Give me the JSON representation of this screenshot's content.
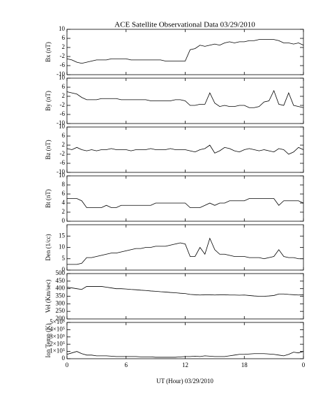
{
  "chart_data": [
    {
      "type": "line",
      "title": "ACE Satellite Observational Data  03/29/2010",
      "ylabel": "Bx (nT)",
      "color": "#000000",
      "x": [
        0,
        0.5,
        1,
        1.5,
        2,
        2.5,
        3,
        3.5,
        4,
        4.5,
        5,
        5.5,
        6,
        6.5,
        7,
        7.5,
        8,
        8.5,
        9,
        9.5,
        10,
        10.5,
        11,
        11.5,
        12,
        12.5,
        13,
        13.5,
        14,
        14.5,
        15,
        15.5,
        16,
        16.5,
        17,
        17.5,
        18,
        18.5,
        19,
        19.5,
        20,
        20.5,
        21,
        21.5,
        22,
        22.5,
        23,
        23.5,
        24
      ],
      "values": [
        -3,
        -3.5,
        -4.5,
        -5,
        -4.5,
        -4,
        -3.5,
        -3.5,
        -3.5,
        -3,
        -3,
        -3,
        -3,
        -3.5,
        -3.5,
        -3.5,
        -3.5,
        -3.5,
        -3.5,
        -3.5,
        -4,
        -4,
        -4,
        -4,
        -4,
        1,
        1.5,
        3,
        2.5,
        3,
        3.5,
        3,
        4,
        4.5,
        4,
        4.5,
        4.5,
        5,
        5,
        5.5,
        5.5,
        5.5,
        5.5,
        5,
        4,
        4,
        3.5,
        4,
        3
      ],
      "xlim": [
        0,
        24
      ],
      "xticks": [
        0,
        6,
        12,
        18,
        {
          "value": 24,
          "label": "0"
        }
      ],
      "ylim": [
        -10,
        10
      ],
      "yticks": [
        -10,
        -6,
        -2,
        2,
        6,
        10
      ]
    },
    {
      "type": "line",
      "ylabel": "By (nT)",
      "color": "#000000",
      "x": [
        0,
        0.5,
        1,
        1.5,
        2,
        2.5,
        3,
        3.5,
        4,
        4.5,
        5,
        5.5,
        6,
        6.5,
        7,
        7.5,
        8,
        8.5,
        9,
        9.5,
        10,
        10.5,
        11,
        11.5,
        12,
        12.5,
        13,
        13.5,
        14,
        14.5,
        15,
        15.5,
        16,
        16.5,
        17,
        17.5,
        18,
        18.5,
        19,
        19.5,
        20,
        20.5,
        21,
        21.5,
        22,
        22.5,
        23,
        23.5,
        24
      ],
      "values": [
        4,
        3.5,
        3,
        1.5,
        0.5,
        0.5,
        0.5,
        1,
        1,
        1,
        1,
        0.5,
        0.5,
        0.5,
        0.5,
        0.5,
        0.5,
        0,
        0,
        0,
        0,
        0,
        0.5,
        0.5,
        0,
        -2,
        -2,
        -1.5,
        -1.5,
        3.5,
        -1,
        -2.5,
        -2,
        -2.5,
        -2.5,
        -2,
        -2,
        -3,
        -3,
        -2.5,
        -0.5,
        0,
        4.5,
        -1.5,
        -2,
        3.5,
        -2,
        -2.5,
        -3
      ],
      "xlim": [
        0,
        24
      ],
      "xticks": [
        0,
        6,
        12,
        18,
        {
          "value": 24,
          "label": "0"
        }
      ],
      "ylim": [
        -10,
        10
      ],
      "yticks": [
        -10,
        -6,
        -2,
        2,
        6,
        10
      ]
    },
    {
      "type": "line",
      "ylabel": "Bz (nT)",
      "color": "#000000",
      "x": [
        0,
        0.5,
        1,
        1.5,
        2,
        2.5,
        3,
        3.5,
        4,
        4.5,
        5,
        5.5,
        6,
        6.5,
        7,
        7.5,
        8,
        8.5,
        9,
        9.5,
        10,
        10.5,
        11,
        11.5,
        12,
        12.5,
        13,
        13.5,
        14,
        14.5,
        15,
        15.5,
        16,
        16.5,
        17,
        17.5,
        18,
        18.5,
        19,
        19.5,
        20,
        20.5,
        21,
        21.5,
        22,
        22.5,
        23,
        23.5,
        24
      ],
      "values": [
        0.5,
        0,
        1,
        0,
        -0.5,
        0,
        -0.5,
        0,
        0,
        0.5,
        0,
        0,
        0,
        -0.5,
        0,
        0,
        0,
        0.5,
        0,
        0,
        0,
        0.5,
        0,
        0,
        0,
        -0.5,
        -1,
        0,
        0.5,
        2,
        -1.5,
        -0.5,
        1,
        0.5,
        -0.5,
        -1,
        0,
        0.5,
        0,
        -0.5,
        0,
        -0.5,
        -1,
        0.5,
        0,
        -2,
        -1,
        1,
        0
      ],
      "xlim": [
        0,
        24
      ],
      "xticks": [
        0,
        6,
        12,
        18,
        {
          "value": 24,
          "label": "0"
        }
      ],
      "ylim": [
        -10,
        10
      ],
      "yticks": [
        -10,
        -6,
        -2,
        2,
        6,
        10
      ]
    },
    {
      "type": "line",
      "ylabel": "Bt (nT)",
      "color": "#000000",
      "x": [
        0,
        0.5,
        1,
        1.5,
        2,
        2.5,
        3,
        3.5,
        4,
        4.5,
        5,
        5.5,
        6,
        6.5,
        7,
        7.5,
        8,
        8.5,
        9,
        9.5,
        10,
        10.5,
        11,
        11.5,
        12,
        12.5,
        13,
        13.5,
        14,
        14.5,
        15,
        15.5,
        16,
        16.5,
        17,
        17.5,
        18,
        18.5,
        19,
        19.5,
        20,
        20.5,
        21,
        21.5,
        22,
        22.5,
        23,
        23.5,
        24
      ],
      "values": [
        5,
        5,
        5,
        4.5,
        3,
        3,
        3,
        3,
        3.5,
        3,
        3,
        3.5,
        3.5,
        3.5,
        3.5,
        3.5,
        3.5,
        3.5,
        4,
        4,
        4,
        4,
        4,
        4,
        4,
        3,
        3,
        3,
        3.5,
        4,
        3.5,
        4,
        4,
        4.5,
        4.5,
        4.5,
        4.5,
        5,
        5,
        5,
        5,
        5,
        5,
        3.5,
        4.5,
        4.5,
        4.5,
        4.5,
        4
      ],
      "xlim": [
        0,
        24
      ],
      "xticks": [
        0,
        6,
        12,
        18,
        {
          "value": 24,
          "label": "0"
        }
      ],
      "ylim": [
        0,
        10
      ],
      "yticks": [
        0,
        2,
        4,
        6,
        8,
        10
      ]
    },
    {
      "type": "line",
      "ylabel": "Den (1/cc)",
      "color": "#000000",
      "x": [
        0,
        0.5,
        1,
        1.5,
        2,
        2.5,
        3,
        3.5,
        4,
        4.5,
        5,
        5.5,
        6,
        6.5,
        7,
        7.5,
        8,
        8.5,
        9,
        9.5,
        10,
        10.5,
        11,
        11.5,
        12,
        12.5,
        13,
        13.5,
        14,
        14.5,
        15,
        15.5,
        16,
        16.5,
        17,
        17.5,
        18,
        18.5,
        19,
        19.5,
        20,
        20.5,
        21,
        21.5,
        22,
        22.5,
        23,
        23.5,
        24
      ],
      "values": [
        2.5,
        2.5,
        2.5,
        3,
        5.5,
        5.5,
        6,
        6.5,
        7,
        7.5,
        7.5,
        8,
        8.5,
        9,
        9.5,
        9.5,
        10,
        10,
        10.5,
        10.5,
        10.5,
        11,
        11.5,
        12,
        11.5,
        6,
        6,
        10,
        7,
        14,
        9,
        7,
        7,
        6.5,
        6,
        6,
        6,
        5.5,
        5.5,
        5.5,
        5,
        5.5,
        6,
        9,
        6,
        5.5,
        5.5,
        5,
        5
      ],
      "xlim": [
        0,
        24
      ],
      "xticks": [
        0,
        6,
        12,
        18,
        {
          "value": 24,
          "label": "0"
        }
      ],
      "ylim": [
        0,
        20
      ],
      "yticks": [
        0,
        5,
        10,
        15
      ]
    },
    {
      "type": "line",
      "ylabel": "Vel (Km/sec)",
      "color": "#000000",
      "x": [
        0,
        0.5,
        1,
        1.5,
        2,
        2.5,
        3,
        3.5,
        4,
        4.5,
        5,
        5.5,
        6,
        6.5,
        7,
        7.5,
        8,
        8.5,
        9,
        9.5,
        10,
        10.5,
        11,
        11.5,
        12,
        12.5,
        13,
        13.5,
        14,
        14.5,
        15,
        15.5,
        16,
        16.5,
        17,
        17.5,
        18,
        18.5,
        19,
        19.5,
        20,
        20.5,
        21,
        21.5,
        22,
        22.5,
        23,
        23.5,
        24
      ],
      "values": [
        410,
        405,
        400,
        395,
        415,
        415,
        415,
        415,
        410,
        405,
        400,
        400,
        398,
        395,
        393,
        390,
        388,
        385,
        383,
        380,
        378,
        375,
        373,
        370,
        368,
        362,
        360,
        358,
        360,
        360,
        358,
        360,
        360,
        358,
        358,
        357,
        358,
        355,
        352,
        350,
        350,
        352,
        355,
        365,
        365,
        362,
        360,
        358,
        360
      ],
      "xlim": [
        0,
        24
      ],
      "xticks": [
        0,
        6,
        12,
        18,
        {
          "value": 24,
          "label": "0"
        }
      ],
      "ylim": [
        200,
        500
      ],
      "yticks": [
        200,
        250,
        300,
        350,
        400,
        450,
        500
      ]
    },
    {
      "type": "line",
      "ylabel": "Ion Temp (K)",
      "xlabel": "UT (Hour)  03/29/2010",
      "color": "#000000",
      "x": [
        0,
        0.5,
        1,
        1.5,
        2,
        2.5,
        3,
        3.5,
        4,
        4.5,
        5,
        5.5,
        6,
        6.5,
        7,
        7.5,
        8,
        8.5,
        9,
        9.5,
        10,
        10.5,
        11,
        11.5,
        12,
        12.5,
        13,
        13.5,
        14,
        14.5,
        15,
        15.5,
        16,
        16.5,
        17,
        17.5,
        18,
        18.5,
        19,
        19.5,
        20,
        20.5,
        21,
        21.5,
        22,
        22.5,
        23,
        23.5,
        24
      ],
      "values": [
        60000,
        80000,
        100000,
        70000,
        50000,
        50000,
        40000,
        40000,
        40000,
        35000,
        30000,
        30000,
        30000,
        30000,
        30000,
        25000,
        25000,
        25000,
        20000,
        20000,
        20000,
        20000,
        20000,
        25000,
        30000,
        30000,
        35000,
        30000,
        40000,
        35000,
        30000,
        30000,
        30000,
        40000,
        50000,
        60000,
        60000,
        65000,
        70000,
        70000,
        70000,
        65000,
        60000,
        50000,
        40000,
        60000,
        90000,
        80000,
        100000
      ],
      "xlim": [
        0,
        24
      ],
      "xticks": [
        0,
        6,
        12,
        18,
        {
          "value": 24,
          "label": "0"
        }
      ],
      "ylim": [
        0,
        500000
      ],
      "yticks": [
        0,
        {
          "value": 100000,
          "label": "1×10⁵"
        },
        {
          "value": 200000,
          "label": "2×10⁵"
        },
        {
          "value": 300000,
          "label": "3×10⁵"
        },
        {
          "value": 400000,
          "label": "4×10⁵"
        },
        {
          "value": 500000,
          "label": "5×10⁵"
        }
      ]
    }
  ]
}
